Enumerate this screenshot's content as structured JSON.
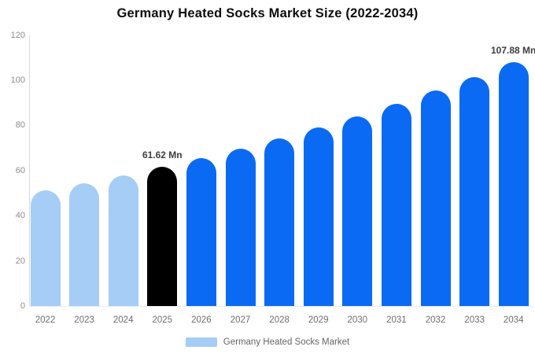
{
  "title": "Germany Heated Socks Market Size (2022-2034)",
  "legend": {
    "label": "Germany Heated Socks Market",
    "swatch_color": "#a5cdf6"
  },
  "colors": {
    "historical_bar": "#a5cdf6",
    "base_year_bar": "#000000",
    "forecast_bar": "#0a6af4",
    "axis_line": "#d9d9d9",
    "baseline": "#ebebeb",
    "y_tick_label": "#8c8c8c",
    "x_tick_label": "#6e6e6e",
    "value_label": "#3d3d3d",
    "background": "#ffffff"
  },
  "chart_data": {
    "type": "bar",
    "title": "Germany Heated Socks Market Size (2022-2034)",
    "categories": [
      "2022",
      "2023",
      "2024",
      "2025",
      "2026",
      "2027",
      "2028",
      "2029",
      "2030",
      "2031",
      "2032",
      "2033",
      "2034"
    ],
    "values": [
      51.1,
      54.4,
      57.9,
      61.62,
      65.6,
      69.8,
      74.3,
      79.0,
      84.1,
      89.5,
      95.3,
      101.4,
      107.88
    ],
    "bar_colors": [
      "#a5cdf6",
      "#a5cdf6",
      "#a5cdf6",
      "#000000",
      "#0a6af4",
      "#0a6af4",
      "#0a6af4",
      "#0a6af4",
      "#0a6af4",
      "#0a6af4",
      "#0a6af4",
      "#0a6af4",
      "#0a6af4"
    ],
    "annotations": [
      {
        "category": "2025",
        "text": "61.62 Mn"
      },
      {
        "category": "2034",
        "text": "107.88 Mn"
      }
    ],
    "xlabel": "",
    "ylabel": "",
    "ylim": [
      0,
      120
    ],
    "yticks": [
      0,
      20,
      40,
      60,
      80,
      100,
      120
    ],
    "grid": false,
    "legend_position": "bottom",
    "legend_entries": [
      "Germany Heated Socks Market"
    ]
  }
}
